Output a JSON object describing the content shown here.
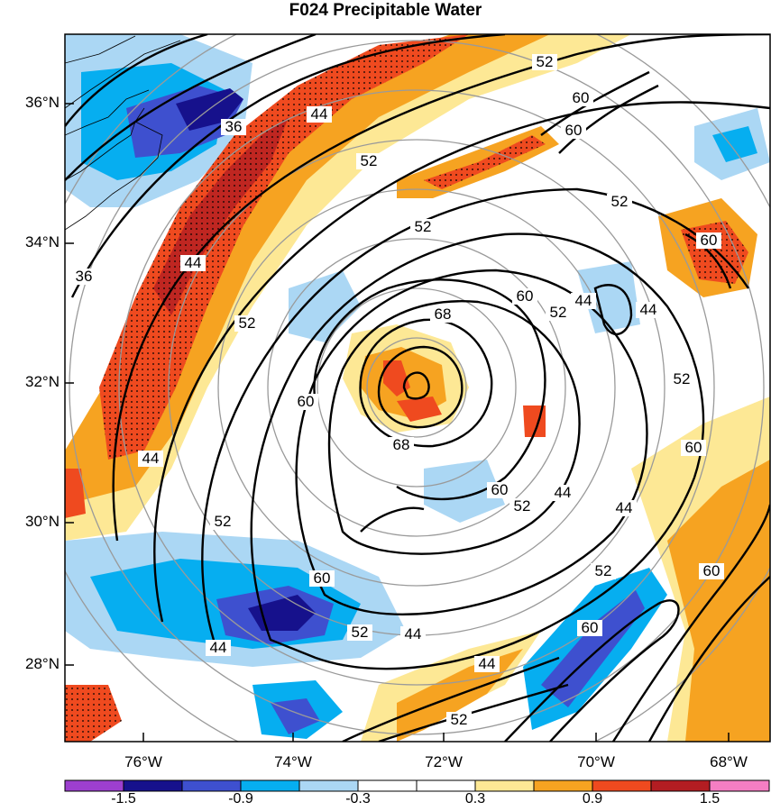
{
  "title": "F024 Precipitable Water",
  "map": {
    "lat_labels": [
      "36°N",
      "34°N",
      "32°N",
      "30°N",
      "28°N"
    ],
    "lon_labels": [
      "76°W",
      "74°W",
      "72°W",
      "70°W",
      "68°W"
    ],
    "contour_labels": [
      "36",
      "44",
      "52",
      "60",
      "68"
    ]
  },
  "colorbar": {
    "labels": [
      "-1.5",
      "-0.9",
      "-0.3",
      "0.3",
      "0.9",
      "1.5"
    ],
    "colors": [
      "#9d3fcf",
      "#16118c",
      "#3e50cf",
      "#06aef0",
      "#abd7f4",
      "#ffffff",
      "#ffffff",
      "#fde895",
      "#f6a321",
      "#ef4a1f",
      "#b31d22",
      "#f57ec3"
    ]
  },
  "colors": {
    "contour": "#000000",
    "range_ring": "#9a9a9a"
  }
}
